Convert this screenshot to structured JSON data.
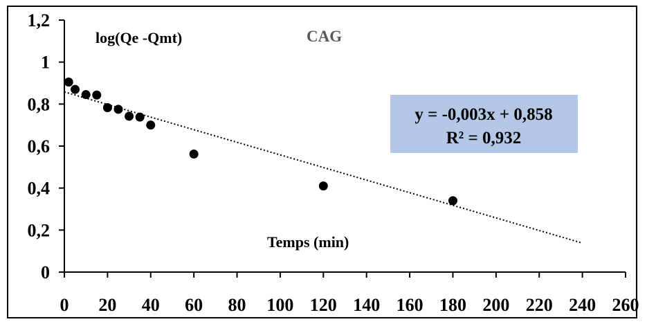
{
  "chart_data": {
    "type": "scatter",
    "title": "CAG",
    "xlabel": "Temps (min)",
    "ylabel": "log(Qe -Qmt)",
    "xlim": [
      0,
      260
    ],
    "ylim": [
      0,
      1.2
    ],
    "xticks": [
      "0",
      "20",
      "40",
      "60",
      "80",
      "100",
      "120",
      "140",
      "160",
      "180",
      "200",
      "220",
      "240",
      "260"
    ],
    "yticks": [
      "0",
      "0,2",
      "0,4",
      "0,6",
      "0,8",
      "1",
      "1,2"
    ],
    "grid": false,
    "legend": "none",
    "series": [
      {
        "x": [
          2,
          5,
          10,
          15,
          20,
          25,
          30,
          35,
          40,
          60,
          120,
          180
        ],
        "y": [
          0.905,
          0.87,
          0.845,
          0.843,
          0.783,
          0.775,
          0.742,
          0.738,
          0.7,
          0.562,
          0.41,
          0.34
        ],
        "color": "#000000"
      }
    ],
    "trendline": {
      "style": "dotted",
      "slope": -0.003,
      "intercept": 0.858,
      "x_range": [
        0,
        240
      ],
      "equation": "y = -0,003x + 0,858",
      "r2": "R² = 0,932",
      "box_color": "#b4c7e7"
    }
  }
}
